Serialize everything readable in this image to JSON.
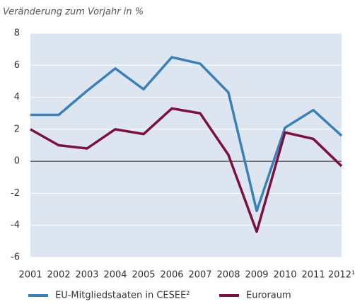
{
  "chart_data": {
    "type": "line",
    "title": "Veränderung zum Vorjahr in %",
    "categories": [
      "2001",
      "2002",
      "2003",
      "2004",
      "2005",
      "2006",
      "2007",
      "2008",
      "2009",
      "2010",
      "2011",
      "2012¹"
    ],
    "series": [
      {
        "name": "EU-Mitgliedstaaten in CESEE²",
        "color": "#3b80b9",
        "values": [
          2.9,
          2.9,
          4.4,
          5.8,
          4.5,
          6.5,
          6.1,
          4.3,
          -3.1,
          2.1,
          3.2,
          1.6
        ]
      },
      {
        "name": "Euroraum",
        "color": "#7b1041",
        "values": [
          2.0,
          1.0,
          0.8,
          2.0,
          1.7,
          3.3,
          3.0,
          0.4,
          -4.4,
          1.8,
          1.4,
          -0.3
        ]
      }
    ],
    "ylim": [
      -6,
      8
    ],
    "yticks": [
      8,
      6,
      4,
      2,
      0,
      -2,
      -4,
      -6
    ],
    "grid": true
  }
}
